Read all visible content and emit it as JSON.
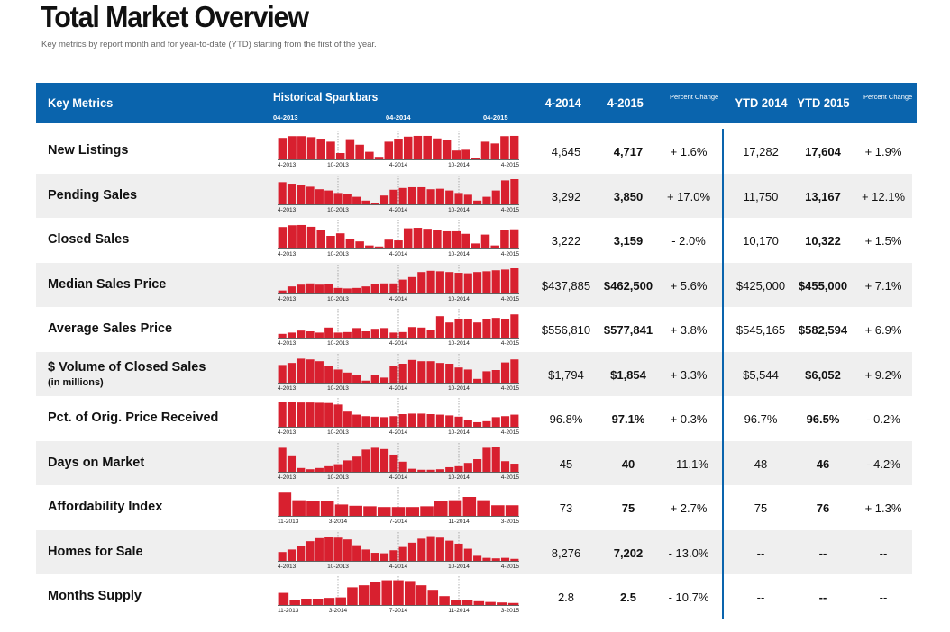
{
  "page": {
    "title": "Total Market Overview",
    "subtitle": "Key metrics by report month and for year-to-date (YTD) starting from the first of the year."
  },
  "header": {
    "key_metrics": "Key Metrics",
    "sparkbars": "Historical Sparkbars",
    "spark_ticks": [
      "04-2013",
      "04-2014",
      "04-2015"
    ],
    "col_4_2014": "4-2014",
    "col_4_2015": "4-2015",
    "pct_change": "Percent Change",
    "ytd_2014": "YTD 2014",
    "ytd_2015": "YTD 2015",
    "ytd_pct_change": "Percent Change"
  },
  "colors": {
    "header_blue": "#0a64ad",
    "bar_red": "#d8202f",
    "row_shade": "#efefef"
  },
  "rows": [
    {
      "metric": "New Listings",
      "sub": "",
      "v2014": "4,645",
      "v2015": "4,717",
      "pct": "+ 1.6%",
      "ytd2014": "17,282",
      "ytd2015": "17,604",
      "ytdpct": "+ 1.9%",
      "axis": [
        "4-2013",
        "10-2013",
        "4-2014",
        "10-2014",
        "4-2015"
      ],
      "bars": [
        0.85,
        0.92,
        0.92,
        0.88,
        0.82,
        0.7,
        0.25,
        0.8,
        0.58,
        0.3,
        0.1,
        0.7,
        0.82,
        0.9,
        0.93,
        0.93,
        0.83,
        0.75,
        0.35,
        0.38,
        0.05,
        0.7,
        0.63,
        0.92,
        0.93
      ]
    },
    {
      "metric": "Pending Sales",
      "sub": "",
      "v2014": "3,292",
      "v2015": "3,850",
      "pct": "+ 17.0%",
      "ytd2014": "11,750",
      "ytd2015": "13,167",
      "ytdpct": "+ 12.1%",
      "axis": [
        "4-2013",
        "10-2013",
        "4-2014",
        "10-2014",
        "4-2015"
      ],
      "bars": [
        0.88,
        0.82,
        0.77,
        0.7,
        0.6,
        0.55,
        0.45,
        0.4,
        0.3,
        0.15,
        0.05,
        0.35,
        0.58,
        0.65,
        0.68,
        0.68,
        0.6,
        0.62,
        0.55,
        0.45,
        0.38,
        0.15,
        0.3,
        0.55,
        0.95,
        1.0
      ]
    },
    {
      "metric": "Closed Sales",
      "sub": "",
      "v2014": "3,222",
      "v2015": "3,159",
      "pct": "- 2.0%",
      "ytd2014": "10,170",
      "ytd2015": "10,322",
      "ytdpct": "+ 1.5%",
      "axis": [
        "4-2013",
        "10-2013",
        "4-2014",
        "10-2014",
        "4-2015"
      ],
      "bars": [
        0.85,
        0.92,
        0.93,
        0.86,
        0.75,
        0.5,
        0.6,
        0.38,
        0.28,
        0.12,
        0.08,
        0.35,
        0.32,
        0.8,
        0.82,
        0.78,
        0.75,
        0.68,
        0.68,
        0.58,
        0.2,
        0.55,
        0.12,
        0.72,
        0.76
      ]
    },
    {
      "metric": "Median Sales Price",
      "sub": "",
      "v2014": "$437,885",
      "v2015": "$462,500",
      "pct": "+ 5.6%",
      "ytd2014": "$425,000",
      "ytd2015": "$455,000",
      "ytdpct": "+ 7.1%",
      "axis": [
        "4-2013",
        "10-2013",
        "4-2014",
        "10-2014",
        "4-2015"
      ],
      "bars": [
        0.12,
        0.28,
        0.35,
        0.4,
        0.35,
        0.38,
        0.22,
        0.2,
        0.22,
        0.28,
        0.38,
        0.4,
        0.4,
        0.55,
        0.65,
        0.85,
        0.9,
        0.88,
        0.85,
        0.82,
        0.8,
        0.85,
        0.88,
        0.92,
        0.95,
        1.0
      ]
    },
    {
      "metric": "Average Sales Price",
      "sub": "",
      "v2014": "$556,810",
      "v2015": "$577,841",
      "pct": "+ 3.8%",
      "ytd2014": "$545,165",
      "ytd2015": "$582,594",
      "ytdpct": "+ 6.9%",
      "axis": [
        "4-2013",
        "10-2013",
        "4-2014",
        "10-2014",
        "4-2015"
      ],
      "bars": [
        0.15,
        0.2,
        0.28,
        0.25,
        0.2,
        0.4,
        0.2,
        0.22,
        0.38,
        0.25,
        0.35,
        0.38,
        0.2,
        0.22,
        0.42,
        0.4,
        0.32,
        0.85,
        0.6,
        0.75,
        0.75,
        0.6,
        0.75,
        0.78,
        0.75,
        0.92
      ]
    },
    {
      "metric": "$ Volume of Closed Sales",
      "sub": "(in millions)",
      "v2014": "$1,794",
      "v2015": "$1,854",
      "pct": "+ 3.3%",
      "ytd2014": "$5,544",
      "ytd2015": "$6,052",
      "ytdpct": "+ 9.2%",
      "axis": [
        "4-2013",
        "10-2013",
        "4-2014",
        "10-2014",
        "4-2015"
      ],
      "bars": [
        0.7,
        0.78,
        0.95,
        0.92,
        0.85,
        0.65,
        0.52,
        0.4,
        0.3,
        0.08,
        0.3,
        0.2,
        0.65,
        0.75,
        0.9,
        0.85,
        0.85,
        0.78,
        0.75,
        0.6,
        0.52,
        0.15,
        0.45,
        0.5,
        0.8,
        0.92
      ]
    },
    {
      "metric": "Pct. of Orig. Price Received",
      "sub": "",
      "v2014": "96.8%",
      "v2015": "97.1%",
      "pct": "+ 0.3%",
      "ytd2014": "96.7%",
      "ytd2015": "96.5%",
      "ytdpct": "- 0.2%",
      "axis": [
        "4-2013",
        "10-2013",
        "4-2014",
        "10-2014",
        "4-2015"
      ],
      "bars": [
        0.98,
        0.98,
        0.96,
        0.96,
        0.95,
        0.94,
        0.88,
        0.6,
        0.48,
        0.42,
        0.4,
        0.38,
        0.42,
        0.5,
        0.52,
        0.52,
        0.5,
        0.48,
        0.45,
        0.4,
        0.25,
        0.18,
        0.22,
        0.38,
        0.42,
        0.48
      ]
    },
    {
      "metric": "Days on Market",
      "sub": "",
      "v2014": "45",
      "v2015": "40",
      "pct": "- 11.1%",
      "ytd2014": "48",
      "ytd2015": "46",
      "ytdpct": "- 4.2%",
      "axis": [
        "4-2013",
        "10-2013",
        "4-2014",
        "10-2014",
        "4-2015"
      ],
      "bars": [
        0.95,
        0.65,
        0.15,
        0.1,
        0.15,
        0.22,
        0.3,
        0.45,
        0.6,
        0.88,
        0.95,
        0.9,
        0.68,
        0.4,
        0.12,
        0.08,
        0.08,
        0.1,
        0.18,
        0.22,
        0.35,
        0.5,
        0.95,
        0.98,
        0.42,
        0.32
      ]
    },
    {
      "metric": "Affordability Index",
      "sub": "",
      "v2014": "73",
      "v2015": "75",
      "pct": "+ 2.7%",
      "ytd2014": "75",
      "ytd2015": "76",
      "ytdpct": "+ 1.3%",
      "axis": [
        "11-2013",
        "3-2014",
        "7-2014",
        "11-2014",
        "3-2015"
      ],
      "bars": [
        0.92,
        0.62,
        0.58,
        0.58,
        0.45,
        0.4,
        0.38,
        0.35,
        0.35,
        0.35,
        0.38,
        0.6,
        0.62,
        0.75,
        0.62,
        0.42,
        0.42
      ]
    },
    {
      "metric": "Homes for Sale",
      "sub": "",
      "v2014": "8,276",
      "v2015": "7,202",
      "pct": "- 13.0%",
      "ytd2014": "--",
      "ytd2015": "--",
      "ytdpct": "--",
      "axis": [
        "4-2013",
        "10-2013",
        "4-2014",
        "10-2014",
        "4-2015"
      ],
      "bars": [
        0.35,
        0.45,
        0.6,
        0.78,
        0.9,
        0.95,
        0.92,
        0.85,
        0.62,
        0.45,
        0.32,
        0.3,
        0.42,
        0.55,
        0.72,
        0.88,
        0.98,
        0.92,
        0.8,
        0.68,
        0.48,
        0.2,
        0.12,
        0.1,
        0.12,
        0.08
      ]
    },
    {
      "metric": "Months Supply",
      "sub": "",
      "v2014": "2.8",
      "v2015": "2.5",
      "pct": "- 10.7%",
      "ytd2014": "--",
      "ytd2015": "--",
      "ytdpct": "--",
      "axis": [
        "11-2013",
        "3-2014",
        "7-2014",
        "11-2014",
        "3-2015"
      ],
      "bars": [
        0.48,
        0.18,
        0.25,
        0.25,
        0.28,
        0.3,
        0.7,
        0.78,
        0.92,
        0.98,
        0.98,
        0.95,
        0.78,
        0.6,
        0.35,
        0.18,
        0.18,
        0.15,
        0.12,
        0.1,
        0.08
      ]
    }
  ]
}
